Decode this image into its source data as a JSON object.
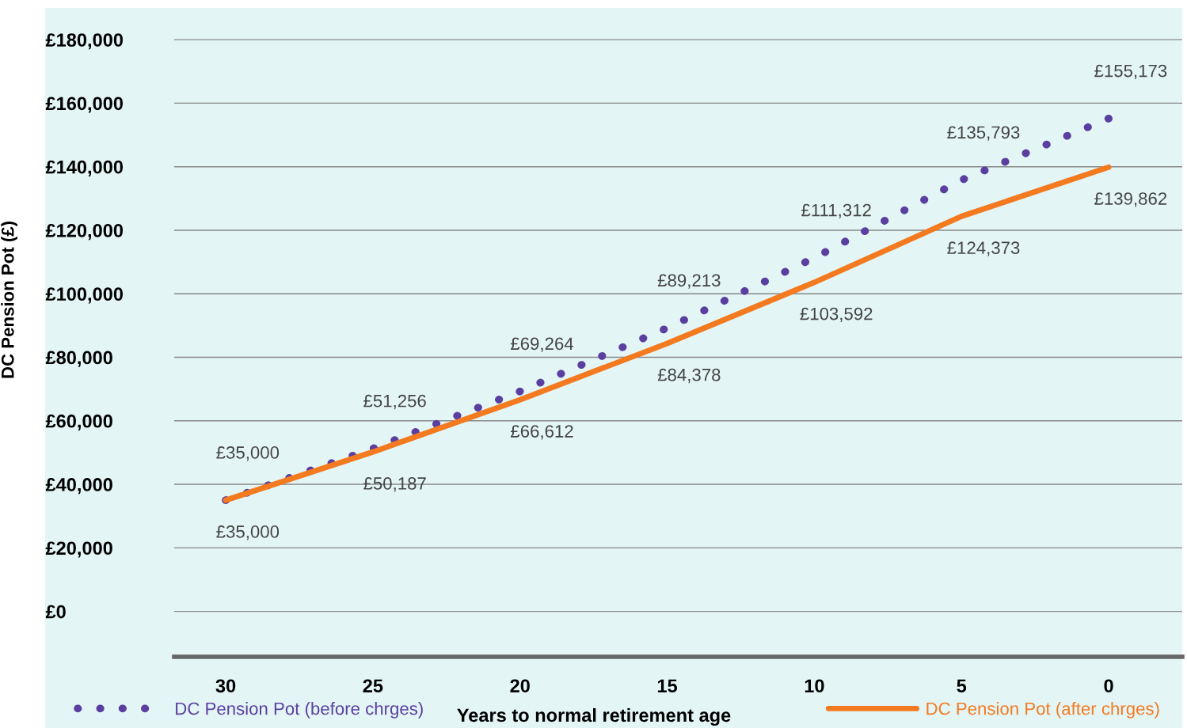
{
  "chart_data": {
    "type": "line",
    "xlabel": "Years to normal retirement age",
    "ylabel": "DC Pension Pot (£)",
    "x": [
      30,
      25,
      20,
      15,
      10,
      5,
      0
    ],
    "series": [
      {
        "name": "DC Pension Pot (before chrges)",
        "color": "#5b3fa0",
        "line_style": "dotted",
        "values": [
          35000,
          51256,
          69264,
          89213,
          111312,
          135793,
          155173
        ],
        "value_labels": [
          "£35,000",
          "£51,256",
          "£69,264",
          "£89,213",
          "£111,312",
          "£135,793",
          "£155,173"
        ]
      },
      {
        "name": "DC Pension Pot (after chrges)",
        "color": "#f47a20",
        "line_style": "solid",
        "values": [
          35000,
          50187,
          66612,
          84378,
          103592,
          124373,
          139862
        ],
        "value_labels": [
          "£35,000",
          "£50,187",
          "£66,612",
          "£84,378",
          "£103,592",
          "£124,373",
          "£139,862"
        ]
      }
    ],
    "xlim": [
      31.75,
      -2.5
    ],
    "xticks": [
      30,
      25,
      20,
      15,
      10,
      5,
      0
    ],
    "ylim": [
      -14300,
      190000
    ],
    "yticks": [
      {
        "value": 0,
        "label": "£0"
      },
      {
        "value": 20000,
        "label": "£20,000"
      },
      {
        "value": 40000,
        "label": "£40,000"
      },
      {
        "value": 60000,
        "label": "£60,000"
      },
      {
        "value": 80000,
        "label": "£80,000"
      },
      {
        "value": 100000,
        "label": "£100,000"
      },
      {
        "value": 120000,
        "label": "£120,000"
      },
      {
        "value": 140000,
        "label": "£140,000"
      },
      {
        "value": 160000,
        "label": "£160,000"
      },
      {
        "value": 180000,
        "label": "£180,000"
      }
    ],
    "grid": "y",
    "legend": "bottom",
    "marker": "none"
  }
}
